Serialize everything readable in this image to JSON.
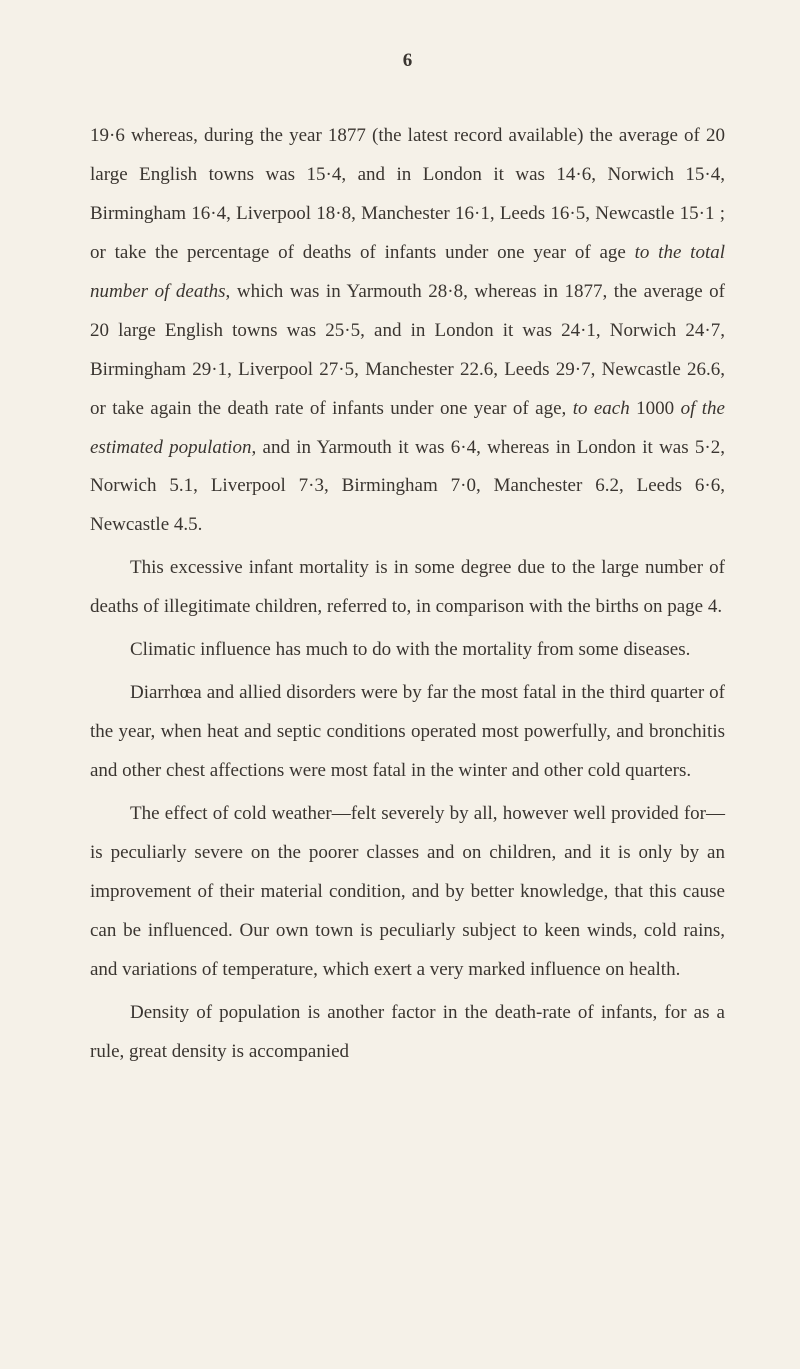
{
  "page": {
    "number": "6"
  },
  "paragraphs": [
    {
      "text": "19·6 whereas, during the year 1877 (the latest record available) the average of 20 large English towns was 15·4, and in London it was 14·6, Norwich 15·4, Birmingham 16·4, Liverpool 18·8, Manchester 16·1, Leeds 16·5, Newcastle 15·1 ; or take the percentage of deaths of infants under one year of age ",
      "italic1": "to the total number of deaths",
      "text2": ", which was in Yarmouth 28·8, whereas in 1877, the average of 20 large English towns was 25·5, and in London it was 24·1, Norwich 24·7, Birmingham 29·1, Liverpool 27·5, Manchester 22.6, Leeds 29·7, Newcastle 26.6, or take again the death rate of infants under one year of age, ",
      "italic2": "to each",
      "text3": " 1000 ",
      "italic3": "of the estimated population",
      "text4": ", and in Yarmouth it was 6·4, whereas in London it was 5·2, Norwich 5.1, Liverpool 7·3, Birmingham 7·0, Manchester 6.2, Leeds 6·6, Newcastle 4.5."
    },
    {
      "text": "This excessive infant mortality is in some degree due to the large number of deaths of illegitimate children, referred to, in comparison with the births on page 4."
    },
    {
      "text": "Climatic influence has much to do with the mortality from some diseases."
    },
    {
      "text": "Diarrhœa and allied disorders were by far the most fatal in the third quarter of the year, when heat and septic conditions operated most powerfully, and bronchitis and other chest affections were most fatal in the winter and other cold quarters."
    },
    {
      "text": "The effect of cold weather—felt severely by all, however well provided for— is peculiarly severe on the poorer classes and on children, and it is only by an improvement of their material condition, and by better knowledge, that this cause can be influenced. Our own town is peculiarly subject to keen winds, cold rains, and variations of temperature, which exert a very marked influence on health."
    },
    {
      "text": "Density of population is another factor in the death-rate of infants, for as a rule, great density is accompanied"
    }
  ],
  "styling": {
    "backgroundColor": "#f5f1e8",
    "textColor": "#3a3530",
    "fontSize": 19,
    "lineHeight": 2.05,
    "pageWidth": 800,
    "pageHeight": 1369
  }
}
